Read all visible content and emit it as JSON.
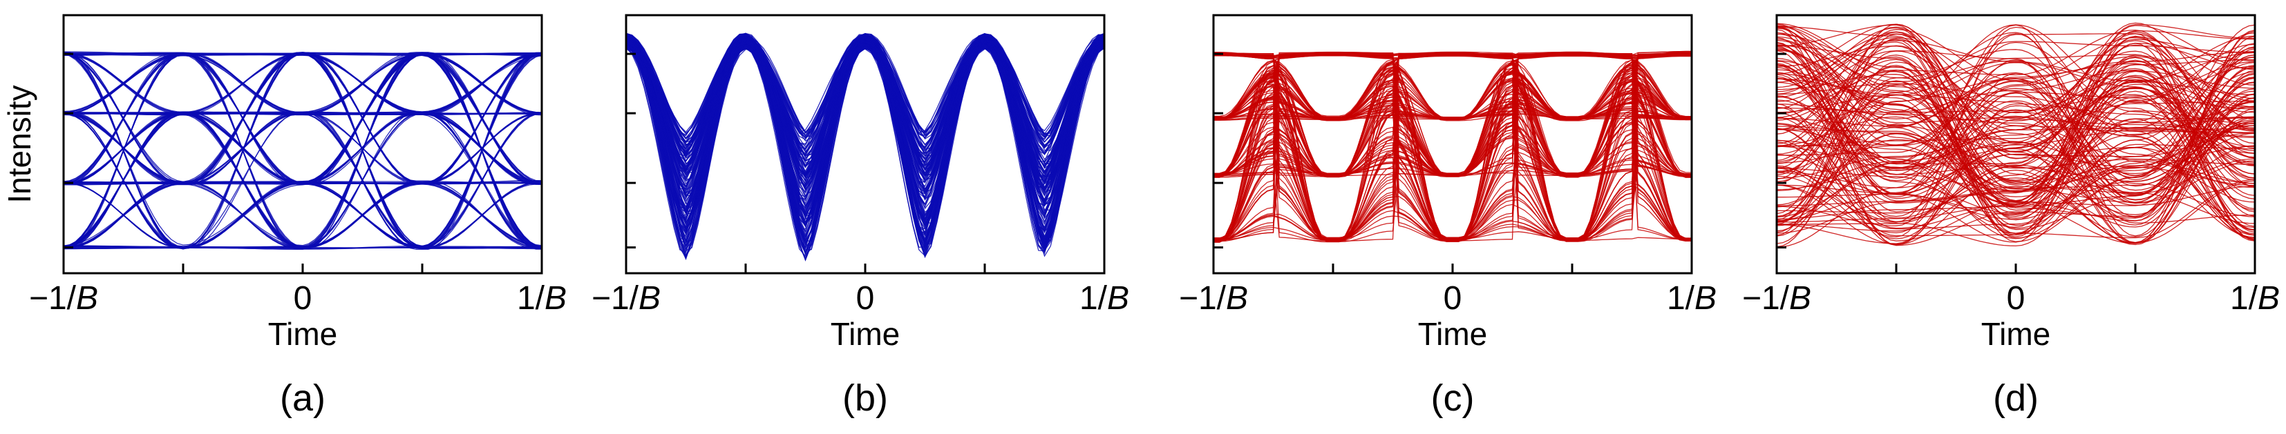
{
  "chart_data": [
    {
      "type": "line",
      "subtype": "eye-diagram",
      "panel_label": "(a)",
      "xlabel": "Time",
      "ylabel": "Intensity",
      "xticklabels": [
        "−1/",
        "0",
        "1/"
      ],
      "x_unit_symbol": "B",
      "xlim": [
        -1,
        1
      ],
      "ylim": [
        0,
        1
      ],
      "color": "#0a0ab4",
      "symbol_period_fraction": 0.5,
      "crossing_times": [
        -0.75,
        -0.25,
        0.25,
        0.75
      ],
      "rail_levels": [
        0.1,
        0.35,
        0.62,
        0.85
      ],
      "eye_opening": "open",
      "trace_count": 150
    },
    {
      "type": "line",
      "subtype": "eye-diagram",
      "panel_label": "(b)",
      "xlabel": "Time",
      "xticklabels": [
        "−1/",
        "0",
        "1/"
      ],
      "x_unit_symbol": "B",
      "xlim": [
        -1,
        1
      ],
      "ylim": [
        0,
        1
      ],
      "color": "#0a0ab4",
      "peak_times": [
        -0.5,
        0.0,
        0.5,
        1.0
      ],
      "peak_level": 0.93,
      "trough_level_range": [
        0.05,
        0.55
      ],
      "eye_opening": "closed",
      "trace_count": 150
    },
    {
      "type": "line",
      "subtype": "eye-diagram",
      "panel_label": "(c)",
      "xlabel": "Time",
      "xticklabels": [
        "−1/",
        "0",
        "1/"
      ],
      "x_unit_symbol": "B",
      "xlim": [
        -1,
        1
      ],
      "ylim": [
        0,
        1
      ],
      "color": "#c80000",
      "peak_times": [
        -0.75,
        -0.25,
        0.25,
        0.75
      ],
      "rail_levels": [
        0.13,
        0.38,
        0.6,
        0.85
      ],
      "eye_opening": "partially open",
      "trace_count": 150
    },
    {
      "type": "line",
      "subtype": "eye-diagram",
      "panel_label": "(d)",
      "xlabel": "Time",
      "xticklabels": [
        "−1/",
        "0",
        "1/"
      ],
      "x_unit_symbol": "B",
      "xlim": [
        -1,
        1
      ],
      "ylim": [
        0,
        1
      ],
      "color": "#c80000",
      "peak_times": [
        -1.0,
        -0.5,
        0.0,
        0.5,
        1.0
      ],
      "level_range": [
        0.1,
        0.97
      ],
      "eye_opening": "closed",
      "trace_count": 150
    }
  ]
}
